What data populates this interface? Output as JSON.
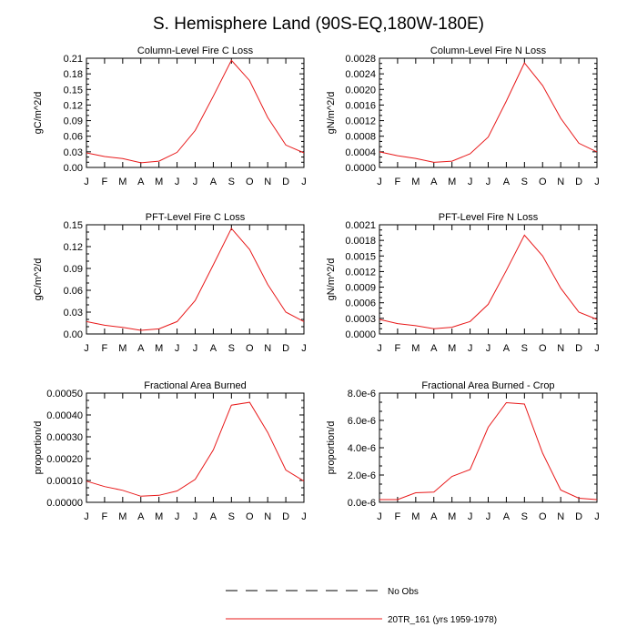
{
  "figure_title": "S. Hemisphere Land (90S-EQ,180W-180E)",
  "months": [
    "J",
    "F",
    "M",
    "A",
    "M",
    "J",
    "J",
    "A",
    "S",
    "O",
    "N",
    "D",
    "J"
  ],
  "colors": {
    "model": "#e8191a",
    "obs": "#000000",
    "axis": "#000000"
  },
  "legend": {
    "obs_label": "No Obs",
    "model_label": "20TR_161 (yrs 1959-1978)"
  },
  "chart_data": [
    {
      "type": "line",
      "title": "Column-Level Fire C Loss",
      "ylabel": "gC/m^2/d",
      "ylim": [
        0,
        0.21
      ],
      "yticks": [
        0,
        0.03,
        0.06,
        0.09,
        0.12,
        0.15,
        0.18,
        0.21
      ],
      "ytick_labels": [
        "0.00",
        "0.03",
        "0.06",
        "0.09",
        "0.12",
        "0.15",
        "0.18",
        "0.21"
      ],
      "x": [
        "J",
        "F",
        "M",
        "A",
        "M",
        "J",
        "J",
        "A",
        "S",
        "O",
        "N",
        "D",
        "J"
      ],
      "series": [
        {
          "name": "20TR_161 (yrs 1959-1978)",
          "values": [
            0.028,
            0.021,
            0.017,
            0.009,
            0.012,
            0.029,
            0.071,
            0.137,
            0.206,
            0.167,
            0.096,
            0.043,
            0.028
          ]
        }
      ]
    },
    {
      "type": "line",
      "title": "Column-Level Fire N Loss",
      "ylabel": "gN/m^2/d",
      "ylim": [
        0,
        0.0028
      ],
      "yticks": [
        0,
        0.0004,
        0.0008,
        0.0012,
        0.0016,
        0.002,
        0.0024,
        0.0028
      ],
      "ytick_labels": [
        "0.0000",
        "0.0004",
        "0.0008",
        "0.0012",
        "0.0016",
        "0.0020",
        "0.0024",
        "0.0028"
      ],
      "x": [
        "J",
        "F",
        "M",
        "A",
        "M",
        "J",
        "J",
        "A",
        "S",
        "O",
        "N",
        "D",
        "J"
      ],
      "series": [
        {
          "name": "20TR_161 (yrs 1959-1978)",
          "values": [
            0.0004,
            0.0003,
            0.00023,
            0.00013,
            0.00016,
            0.00035,
            0.00078,
            0.0017,
            0.00268,
            0.0021,
            0.00126,
            0.00062,
            0.0004
          ]
        }
      ]
    },
    {
      "type": "line",
      "title": "PFT-Level Fire C Loss",
      "ylabel": "gC/m^2/d",
      "ylim": [
        0,
        0.15
      ],
      "yticks": [
        0,
        0.03,
        0.06,
        0.09,
        0.12,
        0.15
      ],
      "ytick_labels": [
        "0.00",
        "0.03",
        "0.06",
        "0.09",
        "0.12",
        "0.15"
      ],
      "x": [
        "J",
        "F",
        "M",
        "A",
        "M",
        "J",
        "J",
        "A",
        "S",
        "O",
        "N",
        "D",
        "J"
      ],
      "series": [
        {
          "name": "20TR_161 (yrs 1959-1978)",
          "values": [
            0.017,
            0.012,
            0.009,
            0.005,
            0.007,
            0.017,
            0.046,
            0.095,
            0.145,
            0.116,
            0.068,
            0.03,
            0.017
          ]
        }
      ]
    },
    {
      "type": "line",
      "title": "PFT-Level Fire N Loss",
      "ylabel": "gN/m^2/d",
      "ylim": [
        0,
        0.0021
      ],
      "yticks": [
        0,
        0.0003,
        0.0006,
        0.0009,
        0.0012,
        0.0015,
        0.0018,
        0.0021
      ],
      "ytick_labels": [
        "0.0000",
        "0.0003",
        "0.0006",
        "0.0009",
        "0.0012",
        "0.0015",
        "0.0018",
        "0.0021"
      ],
      "x": [
        "J",
        "F",
        "M",
        "A",
        "M",
        "J",
        "J",
        "A",
        "S",
        "O",
        "N",
        "D",
        "J"
      ],
      "series": [
        {
          "name": "20TR_161 (yrs 1959-1978)",
          "values": [
            0.00028,
            0.0002,
            0.00016,
            0.0001,
            0.00013,
            0.00024,
            0.00057,
            0.00122,
            0.0019,
            0.0015,
            0.00088,
            0.00042,
            0.00028
          ]
        }
      ]
    },
    {
      "type": "line",
      "title": "Fractional Area Burned",
      "ylabel": "proportion/d",
      "ylim": [
        0,
        0.0005
      ],
      "yticks": [
        0,
        0.0001,
        0.0002,
        0.0003,
        0.0004,
        0.0005
      ],
      "ytick_labels": [
        "0.00000",
        "0.00010",
        "0.00020",
        "0.00030",
        "0.00040",
        "0.00050"
      ],
      "x": [
        "J",
        "F",
        "M",
        "A",
        "M",
        "J",
        "J",
        "A",
        "S",
        "O",
        "N",
        "D",
        "J"
      ],
      "series": [
        {
          "name": "20TR_161 (yrs 1959-1978)",
          "values": [
            9.7e-05,
            7.2e-05,
            5.5e-05,
            2.8e-05,
            3.2e-05,
            5.2e-05,
            0.000105,
            0.00024,
            0.000445,
            0.000458,
            0.00032,
            0.000148,
            9.7e-05
          ]
        }
      ]
    },
    {
      "type": "line",
      "title": "Fractional Area Burned - Crop",
      "ylabel": "proportion/d",
      "ylim": [
        0,
        8e-06
      ],
      "yticks": [
        0,
        2e-06,
        4e-06,
        6e-06,
        8e-06
      ],
      "ytick_labels": [
        "0.0e-6",
        "2.0e-6",
        "4.0e-6",
        "6.0e-6",
        "8.0e-6"
      ],
      "x": [
        "J",
        "F",
        "M",
        "A",
        "M",
        "J",
        "J",
        "A",
        "S",
        "O",
        "N",
        "D",
        "J"
      ],
      "series": [
        {
          "name": "20TR_161 (yrs 1959-1978)",
          "values": [
            2e-07,
            2e-07,
            7e-07,
            7.5e-07,
            1.9e-06,
            2.4e-06,
            5.5e-06,
            7.3e-06,
            7.2e-06,
            3.6e-06,
            9e-07,
            3e-07,
            2e-07
          ]
        }
      ]
    }
  ]
}
